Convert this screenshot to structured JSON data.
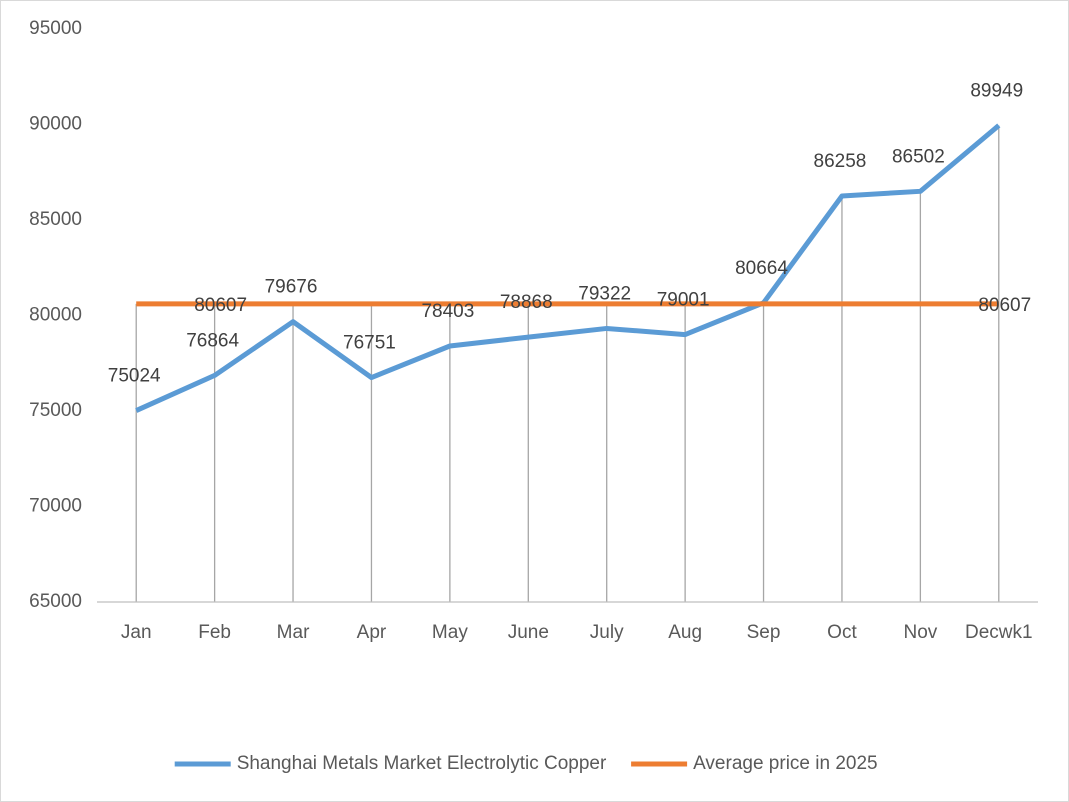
{
  "chart_data": {
    "type": "line",
    "categories": [
      "Jan",
      "Feb",
      "Mar",
      "Apr",
      "May",
      "June",
      "July",
      "Aug",
      "Sep",
      "Oct",
      "Nov",
      "Decwk1"
    ],
    "series": [
      {
        "name": "Shanghai Metals Market Electrolytic Copper",
        "color": "#5b9bd5",
        "values": [
          75024,
          76864,
          79676,
          76751,
          78403,
          78868,
          79322,
          79001,
          80664,
          86258,
          86502,
          89949
        ],
        "show_labels": [
          true,
          true,
          true,
          true,
          true,
          true,
          true,
          true,
          true,
          true,
          true,
          true
        ]
      },
      {
        "name": "Average price in 2025",
        "color": "#ed7d31",
        "values": [
          80607,
          80607,
          80607,
          80607,
          80607,
          80607,
          80607,
          80607,
          80607,
          80607,
          80607,
          80607
        ],
        "show_labels": [
          false,
          true,
          false,
          false,
          false,
          false,
          false,
          false,
          false,
          false,
          false,
          true
        ]
      }
    ],
    "ylim": [
      65000,
      95000
    ],
    "yticks": [
      65000,
      70000,
      75000,
      80000,
      85000,
      90000,
      95000
    ],
    "grid": false,
    "drop_lines": true,
    "legend": "bottom"
  }
}
